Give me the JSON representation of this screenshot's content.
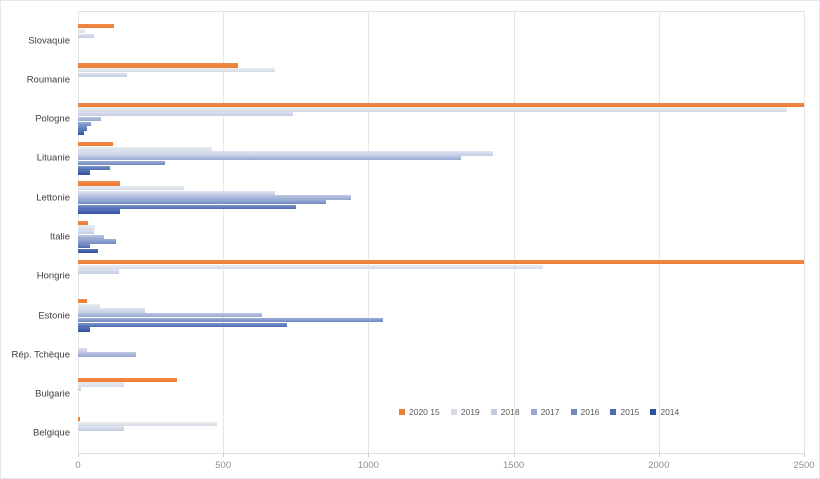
{
  "figure": {
    "background": "#ffffff",
    "border_color": "#e4e7eb",
    "grid_color": "#e6e6e6",
    "axis_line_color": "#dcdfe3",
    "category_label_color": "#404040",
    "tick_label_color": "#8a8f96",
    "legend_text_color": "#595959"
  },
  "chart_data": {
    "type": "bar",
    "orientation": "horizontal",
    "title": "",
    "xlabel": "",
    "ylabel": "",
    "xlim": [
      0,
      2500
    ],
    "x_ticks": [
      "0",
      "500",
      "1000",
      "1500",
      "2000",
      "2500"
    ],
    "x_tick_values": [
      0,
      500,
      1000,
      1500,
      2000,
      2500
    ],
    "grid": "vertical",
    "legend_position": "bottom-center-inside",
    "categories": [
      "Slovaquie",
      "Roumanie",
      "Pologne",
      "Lituanie",
      "Lettonie",
      "Italie",
      "Hongrie",
      "Estonie",
      "Rép. Tchèque",
      "Bulgarie",
      "Belgique"
    ],
    "series": [
      {
        "name": "2020 15",
        "color": "#ED7D31",
        "color_light": "#F08A48",
        "values": [
          125,
          550,
          2500,
          120,
          145,
          35,
          2500,
          30,
          0,
          340,
          8
        ]
      },
      {
        "name": "2019",
        "color": "#D6DCE5",
        "color_light": "#E9EDF2",
        "values": [
          25,
          680,
          2440,
          460,
          365,
          60,
          1600,
          75,
          0,
          160,
          480
        ]
      },
      {
        "name": "2018",
        "color": "#C3CCE2",
        "color_light": "#DDE3F0",
        "values": [
          55,
          170,
          740,
          1430,
          680,
          55,
          140,
          230,
          30,
          10,
          160
        ]
      },
      {
        "name": "2017",
        "color": "#97A7D0",
        "color_light": "#BCC7E3",
        "values": [
          0,
          0,
          80,
          1320,
          940,
          90,
          0,
          635,
          200,
          0,
          0
        ]
      },
      {
        "name": "2016",
        "color": "#7189BE",
        "color_light": "#9CAED8",
        "values": [
          0,
          0,
          45,
          300,
          855,
          130,
          0,
          1050,
          0,
          0,
          0
        ]
      },
      {
        "name": "2015",
        "color": "#4C6AAF",
        "color_light": "#7D94CB",
        "values": [
          0,
          0,
          30,
          110,
          750,
          40,
          0,
          720,
          0,
          0,
          0
        ]
      },
      {
        "name": "2014",
        "color": "#2E4F9E",
        "color_light": "#5B76BC",
        "values": [
          0,
          0,
          20,
          40,
          145,
          70,
          0,
          40,
          0,
          0,
          0
        ]
      }
    ]
  }
}
